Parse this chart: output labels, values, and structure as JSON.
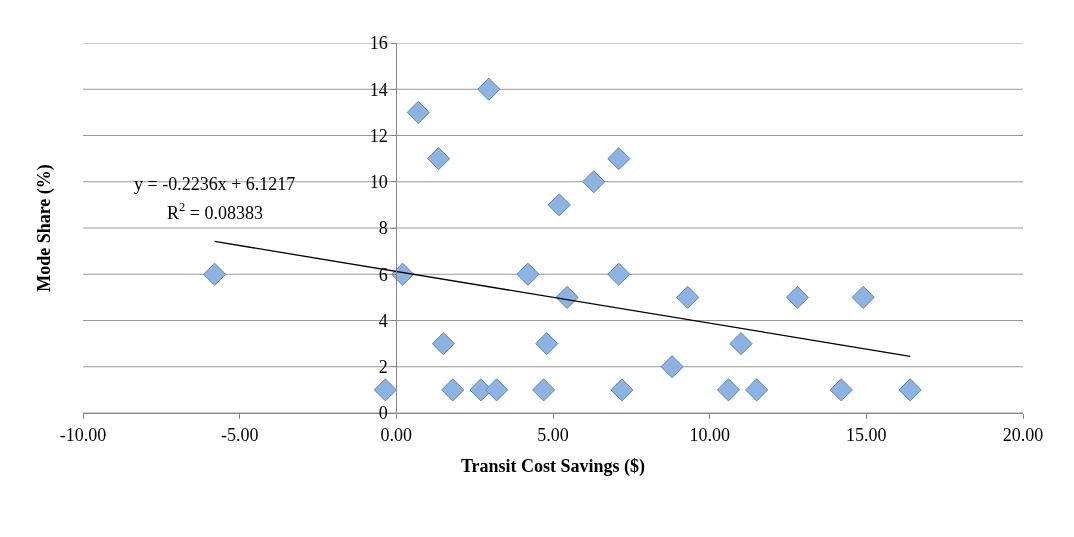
{
  "chart_data": {
    "type": "scatter",
    "xlabel": "Transit Cost Savings ($)",
    "ylabel": "Mode Share (%)",
    "series": [
      {
        "color": "#8db3e2",
        "marker": "diamond",
        "x": [
          -5.8,
          -0.35,
          0.7,
          0.2,
          1.35,
          1.5,
          1.8,
          2.7,
          2.95,
          3.2,
          4.2,
          4.7,
          4.8,
          5.2,
          5.45,
          6.3,
          7.1,
          7.1,
          7.2,
          8.8,
          9.3,
          10.6,
          11.0,
          11.5,
          12.8,
          14.2,
          14.9,
          16.4
        ],
        "values": [
          6,
          1,
          13,
          6,
          11,
          3,
          1,
          1,
          14,
          1,
          6,
          1,
          3,
          9,
          5,
          10,
          11,
          6,
          1,
          2,
          5,
          1,
          3,
          1,
          5,
          1,
          5,
          1
        ]
      },
      {
        "type": "line",
        "color": "#000000",
        "marker": "none",
        "line_style": "solid",
        "x": [
          -5.8,
          16.4
        ],
        "values": [
          7.42,
          2.45
        ]
      }
    ],
    "xlim": [
      -10,
      20
    ],
    "ylim": [
      0,
      16
    ],
    "xticks": [
      {
        "value": -10,
        "label": "-10.00"
      },
      {
        "value": -5,
        "label": "-5.00"
      },
      {
        "value": 0,
        "label": "0.00"
      },
      {
        "value": 5,
        "label": "5.00"
      },
      {
        "value": 10,
        "label": "10.00"
      },
      {
        "value": 15,
        "label": "15.00"
      },
      {
        "value": 20,
        "label": "20.00"
      }
    ],
    "yticks": [
      0,
      2,
      4,
      6,
      8,
      10,
      12,
      14,
      16
    ],
    "grid": "y",
    "legend": false,
    "annotations": [
      "y = -0.2236x + 6.1217",
      "R$^{2}$ = 0.08383"
    ]
  }
}
